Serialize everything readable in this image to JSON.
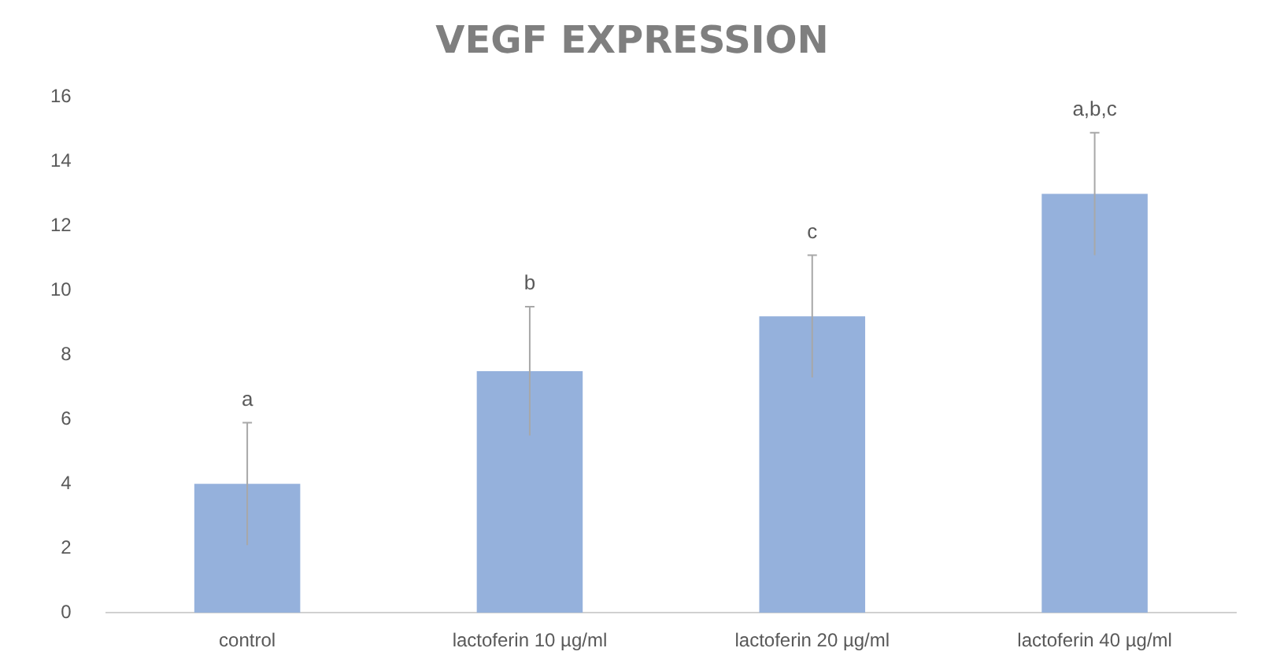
{
  "chart_data": {
    "type": "bar",
    "title": "VEGF EXPRESSION",
    "categories": [
      "control",
      "lactoferin 10 µg/ml",
      "lactoferin 20 µg/ml",
      "lactoferin 40 µg/ml"
    ],
    "values": [
      4.0,
      7.5,
      9.2,
      13.0
    ],
    "errors": [
      1.9,
      2.0,
      1.9,
      1.9
    ],
    "color": "#95b1dc",
    "ylim": [
      0,
      16
    ],
    "yticks": [
      0,
      2,
      4,
      6,
      8,
      10,
      12,
      14,
      16
    ],
    "grid": false,
    "annotations": [
      "a",
      "b",
      "c",
      "a,b,c"
    ]
  }
}
